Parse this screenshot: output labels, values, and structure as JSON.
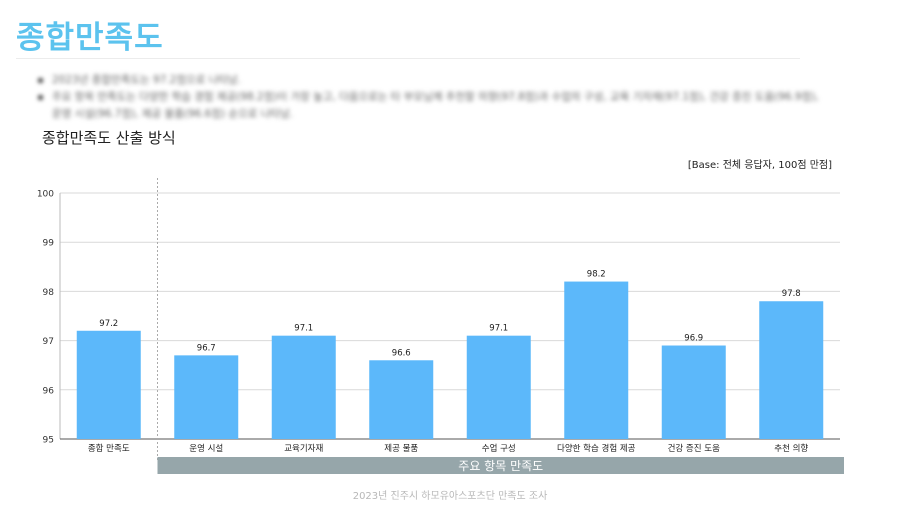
{
  "header": {
    "title": "종합만족도"
  },
  "summary": {
    "bullets": [
      "2023년 종합만족도는 97.2점으로 나타남.",
      "주요 항목 만족도는 다양한 학습 경험 제공(98.2점)이 가장 높고, 다음으로는 타 부모님께 추천할 의향(97.8점)과 수업의 구성, 교육 기자재(97.1점), 건강 증진 도움(96.9점), 운영 시설(96.7점), 제공 물품(96.6점) 순으로 나타남."
    ]
  },
  "section_title": "종합만족도 산출 방식",
  "base_note": "[Base: 전체 응답자, 100점 만점]",
  "chart_data": {
    "type": "bar",
    "categories": [
      "종합 만족도",
      "운영 시설",
      "교육기자재",
      "제공 물품",
      "수업 구성",
      "다양한 학습 경험 제공",
      "건강 증진 도움",
      "추천 의향"
    ],
    "values": [
      97.2,
      96.7,
      97.1,
      96.6,
      97.1,
      98.2,
      96.9,
      97.8
    ],
    "value_labels": [
      "97.2",
      "96.7",
      "97.1",
      "96.6",
      "97.1",
      "98.2",
      "96.9",
      "97.8"
    ],
    "yticks": [
      "95",
      "96",
      "97",
      "98",
      "99",
      "100"
    ],
    "ylim": [
      95,
      100
    ],
    "grid": true,
    "bar_color": "#5cb8fa",
    "group_label": "주요 항목 만족도",
    "group_color": "#96a6aa"
  },
  "footer": "2023년 진주시 하모유아스포츠단 만족도 조사"
}
